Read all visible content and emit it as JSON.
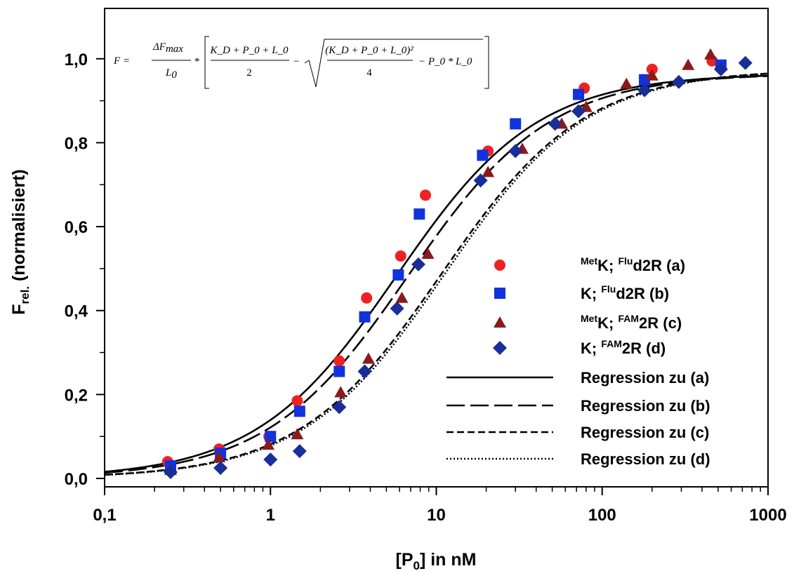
{
  "chart_data": {
    "type": "scatter",
    "xscale": "log",
    "xlim": [
      0.1,
      1000
    ],
    "ylim": [
      -0.02,
      1.12
    ],
    "grid": false,
    "legend_placement": "bottom-right",
    "xlabel_main": "[P",
    "xlabel_sub": "0",
    "xlabel_rest": "] in nM",
    "ylabel_main": "F",
    "ylabel_sub": "rel.",
    "ylabel_rest": " (normalisiert)",
    "x_ticks": [
      {
        "value": 0.1,
        "label": "0,1"
      },
      {
        "value": 1,
        "label": "1"
      },
      {
        "value": 10,
        "label": "10"
      },
      {
        "value": 100,
        "label": "100"
      },
      {
        "value": 1000,
        "label": "1000"
      }
    ],
    "y_ticks": [
      {
        "value": 0.0,
        "label": "0,0"
      },
      {
        "value": 0.2,
        "label": "0,2"
      },
      {
        "value": 0.4,
        "label": "0,4"
      },
      {
        "value": 0.6,
        "label": "0,6"
      },
      {
        "value": 0.8,
        "label": "0,8"
      },
      {
        "value": 1.0,
        "label": "1,0"
      }
    ],
    "formula": {
      "lhs": "F =",
      "frac1_num": "ΔF",
      "frac1_num_sub": "max",
      "frac1_den": "L",
      "frac1_den_sub": "0",
      "times": "*",
      "frac2_num": "K_D + P_0 + L_0",
      "frac2_den": "2",
      "minus": "−",
      "frac3_num": "(K_D + P_0 + L_0)²",
      "frac3_den": "4",
      "tail": "− P_0 * L_0"
    },
    "series": [
      {
        "id": "a",
        "kind": "scatter",
        "marker": "circle",
        "color": "#ee2222",
        "legend_sup": "Met",
        "legend_mid": "K; ",
        "legend_sup2": "Flu",
        "legend_rest": "d2R (a)",
        "points": [
          [
            0.24,
            0.04
          ],
          [
            0.49,
            0.07
          ],
          [
            0.98,
            0.1
          ],
          [
            1.45,
            0.185
          ],
          [
            2.6,
            0.28
          ],
          [
            3.8,
            0.43
          ],
          [
            6.1,
            0.53
          ],
          [
            8.6,
            0.675
          ],
          [
            20.5,
            0.78
          ],
          [
            78,
            0.93
          ],
          [
            200,
            0.975
          ],
          [
            460,
            0.995
          ]
        ]
      },
      {
        "id": "b",
        "kind": "scatter",
        "marker": "square",
        "color": "#1133dd",
        "legend_sup": "",
        "legend_mid": "K; ",
        "legend_sup2": "Flu",
        "legend_rest": "d2R (b)",
        "points": [
          [
            0.25,
            0.03
          ],
          [
            0.5,
            0.06
          ],
          [
            1.0,
            0.1
          ],
          [
            1.5,
            0.16
          ],
          [
            2.6,
            0.255
          ],
          [
            3.7,
            0.385
          ],
          [
            5.9,
            0.485
          ],
          [
            7.9,
            0.63
          ],
          [
            19,
            0.77
          ],
          [
            30,
            0.845
          ],
          [
            72,
            0.915
          ],
          [
            180,
            0.95
          ],
          [
            520,
            0.985
          ]
        ]
      },
      {
        "id": "c",
        "kind": "scatter",
        "marker": "triangle",
        "color": "#8b1a1a",
        "legend_sup": "Met",
        "legend_mid": "K; ",
        "legend_sup2": "FAM",
        "legend_rest": "2R (c)",
        "points": [
          [
            0.25,
            0.02
          ],
          [
            0.49,
            0.05
          ],
          [
            0.97,
            0.08
          ],
          [
            1.45,
            0.105
          ],
          [
            2.65,
            0.205
          ],
          [
            3.9,
            0.285
          ],
          [
            6.2,
            0.43
          ],
          [
            8.9,
            0.535
          ],
          [
            20.5,
            0.73
          ],
          [
            33,
            0.785
          ],
          [
            57,
            0.845
          ],
          [
            80,
            0.885
          ],
          [
            140,
            0.94
          ],
          [
            200,
            0.96
          ],
          [
            330,
            0.985
          ],
          [
            450,
            1.01
          ]
        ]
      },
      {
        "id": "d",
        "kind": "scatter",
        "marker": "diamond",
        "color": "#1a2e99",
        "legend_sup": "",
        "legend_mid": "K; ",
        "legend_sup2": "FAM",
        "legend_rest": "2R (d)",
        "points": [
          [
            0.25,
            0.015
          ],
          [
            0.5,
            0.025
          ],
          [
            1.0,
            0.045
          ],
          [
            1.5,
            0.065
          ],
          [
            2.6,
            0.17
          ],
          [
            3.7,
            0.255
          ],
          [
            5.8,
            0.405
          ],
          [
            7.8,
            0.51
          ],
          [
            18.5,
            0.71
          ],
          [
            30,
            0.78
          ],
          [
            52,
            0.845
          ],
          [
            72,
            0.875
          ],
          [
            180,
            0.925
          ],
          [
            290,
            0.945
          ],
          [
            520,
            0.975
          ],
          [
            730,
            0.99
          ]
        ]
      },
      {
        "id": "reg-a",
        "kind": "line",
        "dash": "solid",
        "color": "#000000",
        "legend_text": "Regression zu (a)",
        "fit": {
          "kd": 5.5,
          "l0": 0.5,
          "fmax": 0.965
        }
      },
      {
        "id": "reg-b",
        "kind": "line",
        "dash": "long-dash",
        "color": "#000000",
        "legend_text": "Regression zu (b)",
        "fit": {
          "kd": 6.5,
          "l0": 0.5,
          "fmax": 0.965
        }
      },
      {
        "id": "reg-c",
        "kind": "line",
        "dash": "short-dash",
        "color": "#000000",
        "legend_text": "Regression zu (c)",
        "fit": {
          "kd": 10.5,
          "l0": 0.5,
          "fmax": 0.975
        }
      },
      {
        "id": "reg-d",
        "kind": "line",
        "dash": "dotted",
        "color": "#000000",
        "legend_text": "Regression zu (d)",
        "fit": {
          "kd": 11.0,
          "l0": 0.5,
          "fmax": 0.975
        }
      }
    ]
  }
}
